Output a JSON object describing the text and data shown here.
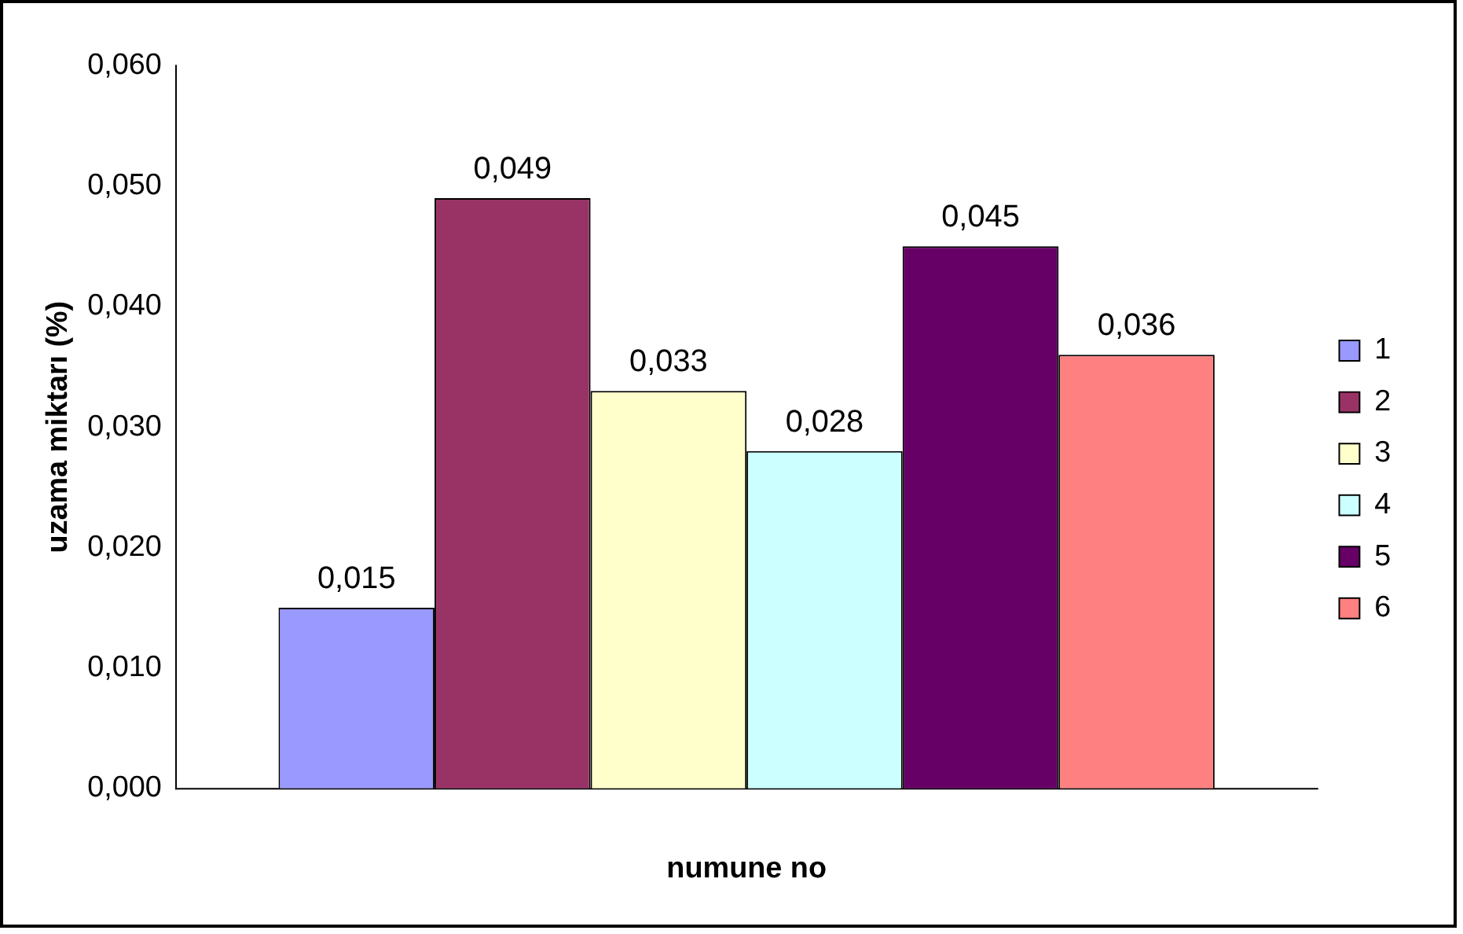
{
  "chart_data": {
    "type": "bar",
    "xlabel": "numune no",
    "ylabel": "uzama miktarı (%)",
    "categories": [
      null
    ],
    "series": [
      {
        "name": "1",
        "color": "#9999ff",
        "values": [
          0.015
        ],
        "value_labels": [
          "0,015"
        ]
      },
      {
        "name": "2",
        "color": "#993366",
        "values": [
          0.049
        ],
        "value_labels": [
          "0,049"
        ]
      },
      {
        "name": "3",
        "color": "#ffffcc",
        "values": [
          0.033
        ],
        "value_labels": [
          "0,033"
        ]
      },
      {
        "name": "4",
        "color": "#ccffff",
        "values": [
          0.028
        ],
        "value_labels": [
          "0,028"
        ]
      },
      {
        "name": "5",
        "color": "#660066",
        "values": [
          0.045
        ],
        "value_labels": [
          "0,045"
        ]
      },
      {
        "name": "6",
        "color": "#ff8080",
        "values": [
          0.036
        ],
        "value_labels": [
          "0,036"
        ]
      }
    ],
    "ylim": [
      0,
      0.06
    ],
    "yticks": [
      {
        "value": 0,
        "label": "0,000"
      },
      {
        "value": 0.01,
        "label": "0,010"
      },
      {
        "value": 0.02,
        "label": "0,020"
      },
      {
        "value": 0.03,
        "label": "0,030"
      },
      {
        "value": 0.04,
        "label": "0,040"
      },
      {
        "value": 0.05,
        "label": "0,050"
      },
      {
        "value": 0.06,
        "label": "0,060"
      }
    ],
    "grid": false,
    "legend": "right"
  }
}
